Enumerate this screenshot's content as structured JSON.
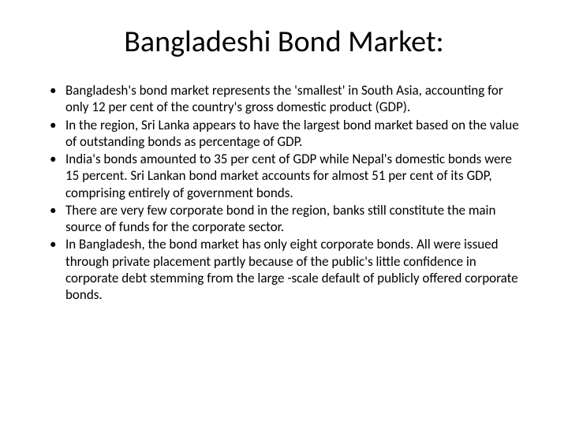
{
  "slide": {
    "title": "Bangladeshi Bond Market:",
    "bullets": [
      "Bangladesh's bond market represents the 'smallest' in South Asia, accounting for only 12 per cent of the country's gross domestic product (GDP).",
      "In the region, Sri Lanka appears to have the largest bond market based on the value of outstanding bonds as percentage of GDP.",
      " India's bonds amounted to 35 per cent of GDP while Nepal's domestic bonds were 15 percent. Sri Lankan bond market accounts for almost 51 per cent of its GDP, comprising entirely of government bonds.",
      "There are very few corporate bond in the region, banks still constitute the main source of funds for the corporate sector.",
      "In Bangladesh, the bond market has only eight corporate bonds. All were issued through private placement partly because of the public's little confidence in corporate debt stemming from the large -scale default of publicly offered corporate bonds."
    ]
  },
  "styling": {
    "background_color": "#ffffff",
    "text_color": "#000000",
    "title_fontsize": 38,
    "body_fontsize": 17,
    "font_family": "Calibri"
  }
}
